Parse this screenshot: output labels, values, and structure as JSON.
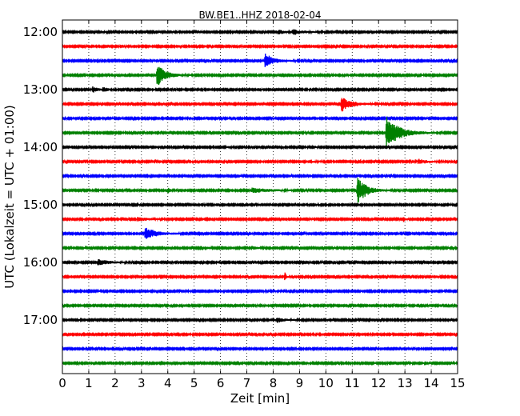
{
  "chart_data": {
    "type": "line",
    "title": "BW.BE1..HHZ 2018-02-04",
    "xlabel": "Zeit  [min]",
    "ylabel": "UTC (Lokalzeit = UTC + 01:00)",
    "xlim": [
      0,
      15
    ],
    "ylim_quarter_hours": [
      0,
      24
    ],
    "x_ticks": [
      "0",
      "1",
      "2",
      "3",
      "4",
      "5",
      "6",
      "7",
      "8",
      "9",
      "10",
      "11",
      "12",
      "13",
      "14",
      "15"
    ],
    "y_ticks": [
      {
        "label": "12:00",
        "row": 0
      },
      {
        "label": "13:00",
        "row": 4
      },
      {
        "label": "14:00",
        "row": 8
      },
      {
        "label": "15:00",
        "row": 12
      },
      {
        "label": "16:00",
        "row": 16
      },
      {
        "label": "17:00",
        "row": 20
      }
    ],
    "grid": "vertical dotted",
    "row_colors": [
      "#000000",
      "#ff0000",
      "#0000ff",
      "#008000"
    ],
    "rows": [
      {
        "start": "12:00",
        "events": [
          {
            "t": 8.2,
            "a": 0.25,
            "d": 0.25
          },
          {
            "t": 8.75,
            "a": 0.35,
            "d": 0.3
          }
        ]
      },
      {
        "start": "12:15",
        "events": []
      },
      {
        "start": "12:30",
        "events": [
          {
            "t": 7.7,
            "a": 1.0,
            "d": 0.3
          }
        ]
      },
      {
        "start": "12:45",
        "events": [
          {
            "t": 3.6,
            "a": 1.6,
            "d": 0.3
          }
        ]
      },
      {
        "start": "13:00",
        "events": [
          {
            "t": 1.15,
            "a": 0.35,
            "d": 0.2
          },
          {
            "t": 1.55,
            "a": 0.3,
            "d": 0.15
          }
        ]
      },
      {
        "start": "13:15",
        "events": [
          {
            "t": 10.6,
            "a": 1.0,
            "d": 0.35
          }
        ]
      },
      {
        "start": "13:30",
        "events": []
      },
      {
        "start": "13:45",
        "events": [
          {
            "t": 12.3,
            "a": 2.2,
            "d": 0.45
          }
        ]
      },
      {
        "start": "14:00",
        "events": [
          {
            "t": 6.3,
            "a": 0.1,
            "d": 0.1
          },
          {
            "t": 9.6,
            "a": 0.12,
            "d": 0.1
          }
        ]
      },
      {
        "start": "14:15",
        "events": [
          {
            "t": 9.5,
            "a": 0.1,
            "d": 0.2
          },
          {
            "t": 13.5,
            "a": 0.35,
            "d": 0.3
          }
        ]
      },
      {
        "start": "14:30",
        "events": []
      },
      {
        "start": "14:45",
        "events": [
          {
            "t": 4.0,
            "a": 0.35,
            "d": 0.1
          },
          {
            "t": 7.2,
            "a": 0.3,
            "d": 0.6
          },
          {
            "t": 11.2,
            "a": 2.0,
            "d": 0.3
          }
        ]
      },
      {
        "start": "15:00",
        "events": []
      },
      {
        "start": "15:15",
        "events": [
          {
            "t": 2.85,
            "a": 0.3,
            "d": 0.35
          },
          {
            "t": 12.95,
            "a": 0.4,
            "d": 0.05
          }
        ]
      },
      {
        "start": "15:30",
        "events": [
          {
            "t": 3.15,
            "a": 0.9,
            "d": 0.35
          }
        ]
      },
      {
        "start": "15:45",
        "events": [
          {
            "t": 5.5,
            "a": 0.1,
            "d": 0.1
          },
          {
            "t": 7.4,
            "a": 0.1,
            "d": 0.1
          }
        ]
      },
      {
        "start": "16:00",
        "events": [
          {
            "t": 1.35,
            "a": 0.45,
            "d": 0.35
          }
        ]
      },
      {
        "start": "16:15",
        "events": [
          {
            "t": 8.45,
            "a": 0.55,
            "d": 0.05
          }
        ]
      },
      {
        "start": "16:30",
        "events": []
      },
      {
        "start": "16:45",
        "events": []
      },
      {
        "start": "17:00",
        "events": [
          {
            "t": 8.15,
            "a": 0.35,
            "d": 0.25
          }
        ]
      },
      {
        "start": "17:15",
        "events": []
      },
      {
        "start": "17:30",
        "events": []
      },
      {
        "start": "17:45",
        "events": []
      }
    ]
  }
}
